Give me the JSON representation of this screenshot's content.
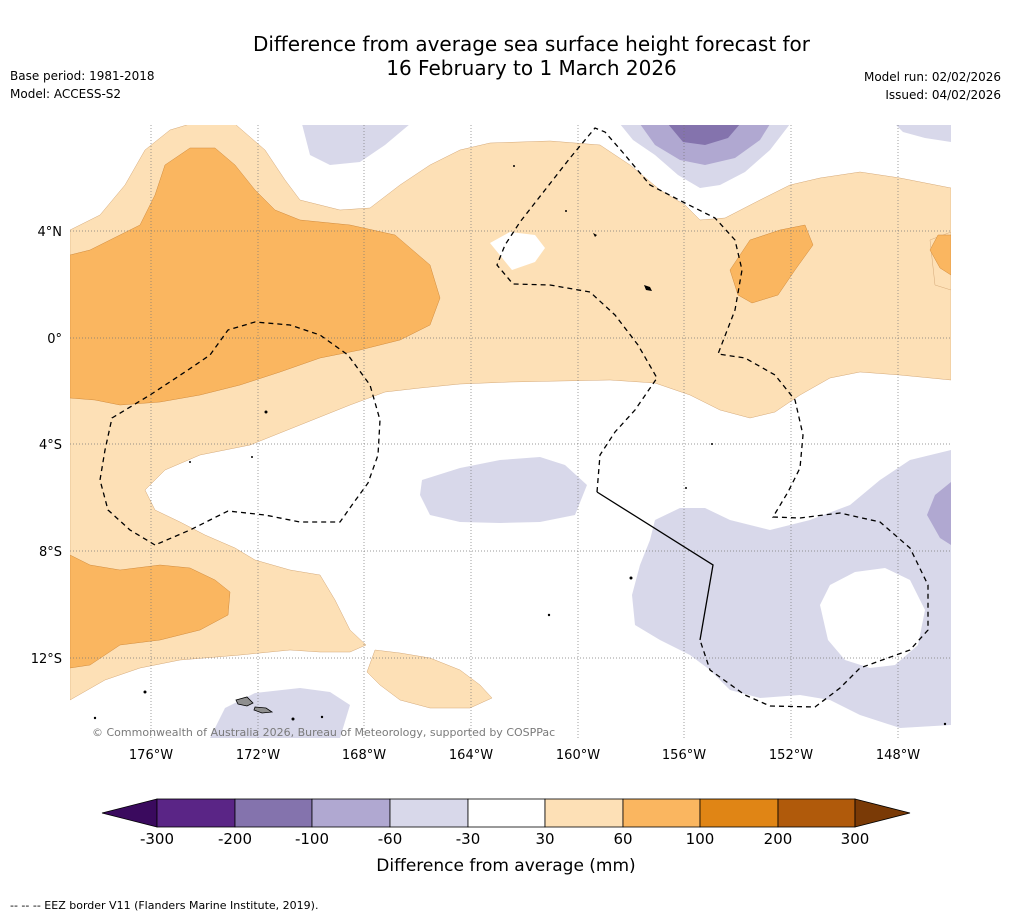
{
  "title_line1": "Difference from average sea surface height forecast for",
  "title_line2": "16 February to 1 March 2026",
  "meta": {
    "base_period": "Base period: 1981-2018",
    "model": "Model: ACCESS-S2",
    "model_run": "Model run: 02/02/2026",
    "issued": "Issued: 04/02/2026"
  },
  "map": {
    "lon_labels": [
      "176°W",
      "172°W",
      "168°W",
      "164°W",
      "160°W",
      "156°W",
      "152°W",
      "148°W"
    ],
    "lat_labels": [
      "4°N",
      "0°",
      "4°S",
      "8°S",
      "12°S"
    ],
    "copyright": "© Commonwealth of Australia 2026, Bureau of Meteorology, supported by COSPPac",
    "colors": {
      "neg300": "#3a0a5e",
      "neg200": "#5a2586",
      "neg100": "#8473ad",
      "neg60": "#b0a8d1",
      "neg30": "#d8d8ea",
      "neutral": "#ffffff",
      "pos30": "#fde0b6",
      "pos60": "#fab660",
      "pos100": "#e08515",
      "pos200": "#b05a0b",
      "pos300": "#7a3a06"
    }
  },
  "colorbar": {
    "ticks": [
      "-300",
      "-200",
      "-100",
      "-60",
      "-30",
      "30",
      "60",
      "100",
      "200",
      "300"
    ],
    "label": "Difference from average (mm)",
    "colors": [
      "#5a2586",
      "#8473ad",
      "#b0a8d1",
      "#d8d8ea",
      "#ffffff",
      "#fde0b6",
      "#fab660",
      "#e08515",
      "#b05a0b"
    ],
    "under_color": "#3a0a5e",
    "over_color": "#7a3a06"
  },
  "footer": "--  --  -- EEZ border V11 (Flanders Marine Institute, 2019)."
}
